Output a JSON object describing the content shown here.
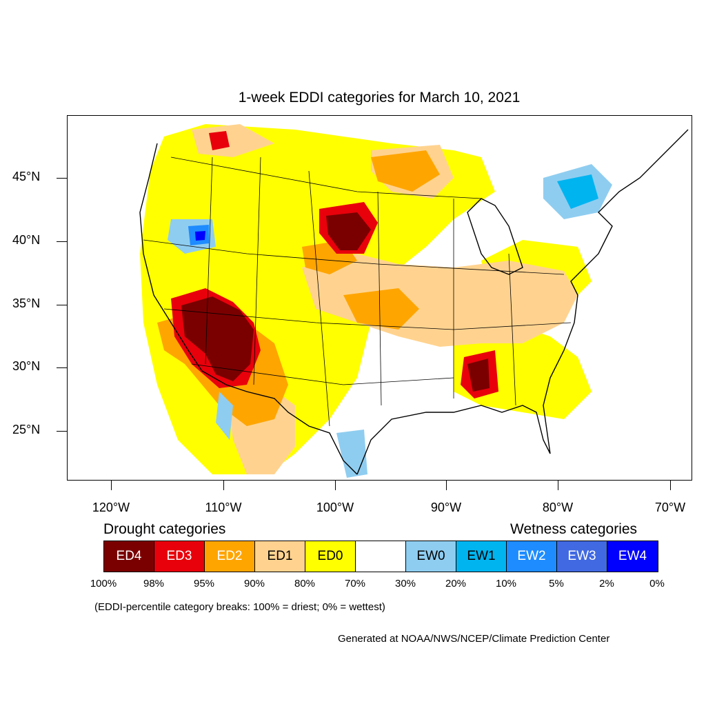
{
  "title": "1-week EDDI categories for March 10, 2021",
  "latitude_labels": [
    "45°N",
    "40°N",
    "35°N",
    "30°N",
    "25°N"
  ],
  "longitude_labels": [
    "120°W",
    "110°W",
    "100°W",
    "90°W",
    "80°W",
    "70°W"
  ],
  "legend": {
    "drought_title": "Drought categories",
    "wetness_title": "Wetness categories",
    "categories": [
      {
        "label": "ED4",
        "color": "#7a0000",
        "text_color": "#ffffff"
      },
      {
        "label": "ED3",
        "color": "#e8000b",
        "text_color": "#ffffff"
      },
      {
        "label": "ED2",
        "color": "#ffa500",
        "text_color": "#ffffff"
      },
      {
        "label": "ED1",
        "color": "#ffd38f",
        "text_color": "#000000"
      },
      {
        "label": "ED0",
        "color": "#ffff00",
        "text_color": "#000000"
      },
      {
        "label": "",
        "color": "#ffffff",
        "text_color": "#000000"
      },
      {
        "label": "EW0",
        "color": "#8fcdf0",
        "text_color": "#000000"
      },
      {
        "label": "EW1",
        "color": "#00b4f0",
        "text_color": "#000000"
      },
      {
        "label": "EW2",
        "color": "#1e8cff",
        "text_color": "#ffffff"
      },
      {
        "label": "EW3",
        "color": "#4169e1",
        "text_color": "#ffffff"
      },
      {
        "label": "EW4",
        "color": "#0000ff",
        "text_color": "#ffffff"
      }
    ],
    "breaks": [
      "100%",
      "98%",
      "95%",
      "90%",
      "80%",
      "70%",
      "30%",
      "20%",
      "10%",
      "5%",
      "2%",
      "0%"
    ]
  },
  "note": "(EDDI-percentile category breaks: 100% = driest; 0% = wettest)",
  "credit": "Generated at NOAA/NWS/NCEP/Climate Prediction Center"
}
